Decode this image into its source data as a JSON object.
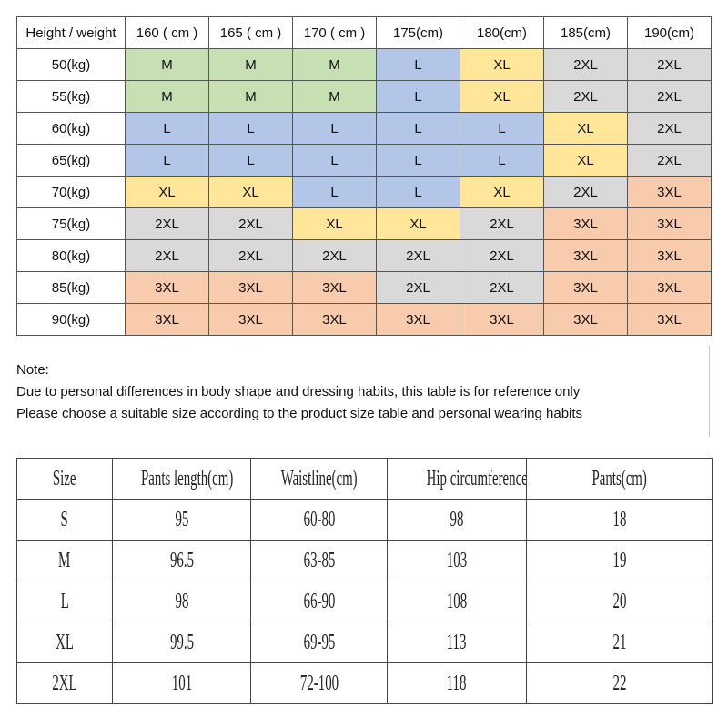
{
  "top_table": {
    "header": [
      "Height / weight",
      "160 ( cm )",
      "165 ( cm )",
      "170 ( cm )",
      "175(cm)",
      "180(cm)",
      "185(cm)",
      "190(cm)"
    ],
    "rows": [
      [
        "50(kg)",
        "M",
        "M",
        "M",
        "L",
        "XL",
        "2XL",
        "2XL"
      ],
      [
        "55(kg)",
        "M",
        "M",
        "M",
        "L",
        "XL",
        "2XL",
        "2XL"
      ],
      [
        "60(kg)",
        "L",
        "L",
        "L",
        "L",
        "L",
        "XL",
        "2XL"
      ],
      [
        "65(kg)",
        "L",
        "L",
        "L",
        "L",
        "L",
        "XL",
        "2XL"
      ],
      [
        "70(kg)",
        "XL",
        "XL",
        "L",
        "L",
        "XL",
        "2XL",
        "3XL"
      ],
      [
        "75(kg)",
        "2XL",
        "2XL",
        "XL",
        "XL",
        "2XL",
        "3XL",
        "3XL"
      ],
      [
        "80(kg)",
        "2XL",
        "2XL",
        "2XL",
        "2XL",
        "2XL",
        "3XL",
        "3XL"
      ],
      [
        "85(kg)",
        "3XL",
        "3XL",
        "3XL",
        "2XL",
        "2XL",
        "3XL",
        "3XL"
      ],
      [
        "90(kg)",
        "3XL",
        "3XL",
        "3XL",
        "3XL",
        "3XL",
        "3XL",
        "3XL"
      ]
    ],
    "size_colors": {
      "M": "#c6e0b4",
      "L": "#b4c6e7",
      "XL": "#ffe699",
      "2XL": "#d9d9d9",
      "3XL": "#f8cbad"
    }
  },
  "note": {
    "lines": [
      "Note:",
      "Due to personal differences in body shape and dressing habits, this table is for reference only",
      "Please choose a suitable size according to the product size table and personal wearing habits"
    ]
  },
  "bottom_table": {
    "header": [
      "Size",
      "Pants length(cm)",
      "Waistline(cm)",
      "Hip circumference(cm)",
      "Pants(cm)"
    ],
    "rows": [
      [
        "S",
        "95",
        "60-80",
        "98",
        "18"
      ],
      [
        "M",
        "96.5",
        "63-85",
        "103",
        "19"
      ],
      [
        "L",
        "98",
        "66-90",
        "108",
        "20"
      ],
      [
        "XL",
        "99.5",
        "69-95",
        "113",
        "21"
      ],
      [
        "2XL",
        "101",
        "72-100",
        "118",
        "22"
      ]
    ]
  }
}
